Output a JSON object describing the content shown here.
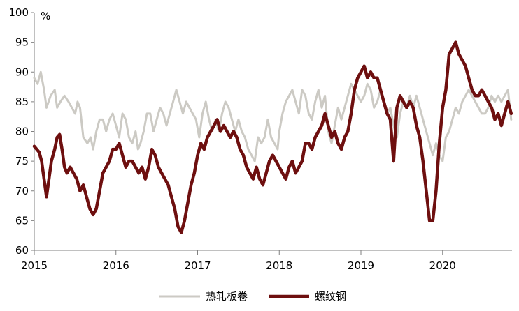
{
  "chart_data": {
    "type": "line",
    "ylabel": "%",
    "ylim": [
      60,
      100
    ],
    "yticks": [
      60,
      65,
      70,
      75,
      80,
      85,
      90,
      95,
      100
    ],
    "xlim": [
      2015,
      2020.85
    ],
    "xticks": [
      2015,
      2016,
      2017,
      2018,
      2019,
      2020
    ],
    "x_tick_labels": [
      "2015",
      "2016",
      "2017",
      "2018",
      "2019",
      "2020"
    ],
    "grid": false,
    "legend_position": "bottom",
    "series": [
      {
        "name": "热轧板卷",
        "color": "#cccac4",
        "points": [
          [
            2015.0,
            89
          ],
          [
            2015.04,
            88
          ],
          [
            2015.08,
            90
          ],
          [
            2015.12,
            87
          ],
          [
            2015.15,
            84
          ],
          [
            2015.2,
            86
          ],
          [
            2015.25,
            87
          ],
          [
            2015.28,
            84
          ],
          [
            2015.32,
            85
          ],
          [
            2015.37,
            86
          ],
          [
            2015.42,
            85
          ],
          [
            2015.46,
            84
          ],
          [
            2015.5,
            83
          ],
          [
            2015.53,
            85
          ],
          [
            2015.56,
            84
          ],
          [
            2015.6,
            79
          ],
          [
            2015.65,
            78
          ],
          [
            2015.69,
            79
          ],
          [
            2015.72,
            77
          ],
          [
            2015.76,
            80
          ],
          [
            2015.8,
            82
          ],
          [
            2015.84,
            82
          ],
          [
            2015.88,
            80
          ],
          [
            2015.92,
            82
          ],
          [
            2015.96,
            83
          ],
          [
            2016.0,
            81
          ],
          [
            2016.04,
            79
          ],
          [
            2016.08,
            83
          ],
          [
            2016.12,
            82
          ],
          [
            2016.16,
            79
          ],
          [
            2016.2,
            78
          ],
          [
            2016.24,
            80
          ],
          [
            2016.27,
            77
          ],
          [
            2016.3,
            78
          ],
          [
            2016.34,
            80
          ],
          [
            2016.38,
            83
          ],
          [
            2016.42,
            83
          ],
          [
            2016.46,
            80
          ],
          [
            2016.5,
            82
          ],
          [
            2016.54,
            84
          ],
          [
            2016.58,
            83
          ],
          [
            2016.62,
            81
          ],
          [
            2016.66,
            83
          ],
          [
            2016.7,
            85
          ],
          [
            2016.74,
            87
          ],
          [
            2016.78,
            85
          ],
          [
            2016.82,
            83
          ],
          [
            2016.86,
            85
          ],
          [
            2016.9,
            84
          ],
          [
            2016.94,
            83
          ],
          [
            2016.98,
            82
          ],
          [
            2017.02,
            79
          ],
          [
            2017.06,
            83
          ],
          [
            2017.1,
            85
          ],
          [
            2017.14,
            82
          ],
          [
            2017.18,
            80
          ],
          [
            2017.22,
            82
          ],
          [
            2017.26,
            80
          ],
          [
            2017.3,
            83
          ],
          [
            2017.34,
            85
          ],
          [
            2017.38,
            84
          ],
          [
            2017.42,
            82
          ],
          [
            2017.46,
            80
          ],
          [
            2017.5,
            82
          ],
          [
            2017.54,
            80
          ],
          [
            2017.58,
            79
          ],
          [
            2017.62,
            77
          ],
          [
            2017.66,
            76
          ],
          [
            2017.7,
            75
          ],
          [
            2017.74,
            79
          ],
          [
            2017.78,
            78
          ],
          [
            2017.82,
            79
          ],
          [
            2017.86,
            82
          ],
          [
            2017.9,
            79
          ],
          [
            2017.94,
            78
          ],
          [
            2017.98,
            77
          ],
          [
            2018.0,
            80
          ],
          [
            2018.04,
            83
          ],
          [
            2018.08,
            85
          ],
          [
            2018.12,
            86
          ],
          [
            2018.16,
            87
          ],
          [
            2018.2,
            85
          ],
          [
            2018.24,
            83
          ],
          [
            2018.28,
            87
          ],
          [
            2018.32,
            86
          ],
          [
            2018.36,
            83
          ],
          [
            2018.4,
            82
          ],
          [
            2018.44,
            85
          ],
          [
            2018.48,
            87
          ],
          [
            2018.52,
            84
          ],
          [
            2018.56,
            86
          ],
          [
            2018.6,
            80
          ],
          [
            2018.64,
            78
          ],
          [
            2018.68,
            81
          ],
          [
            2018.72,
            84
          ],
          [
            2018.76,
            82
          ],
          [
            2018.8,
            84
          ],
          [
            2018.84,
            86
          ],
          [
            2018.88,
            88
          ],
          [
            2018.92,
            87
          ],
          [
            2018.96,
            86
          ],
          [
            2019.0,
            85
          ],
          [
            2019.04,
            86
          ],
          [
            2019.08,
            88
          ],
          [
            2019.12,
            87
          ],
          [
            2019.16,
            84
          ],
          [
            2019.2,
            85
          ],
          [
            2019.24,
            87
          ],
          [
            2019.28,
            85
          ],
          [
            2019.32,
            83
          ],
          [
            2019.36,
            84
          ],
          [
            2019.4,
            81
          ],
          [
            2019.44,
            79
          ],
          [
            2019.48,
            83
          ],
          [
            2019.52,
            85
          ],
          [
            2019.56,
            84
          ],
          [
            2019.6,
            86
          ],
          [
            2019.64,
            84
          ],
          [
            2019.68,
            86
          ],
          [
            2019.72,
            84
          ],
          [
            2019.76,
            82
          ],
          [
            2019.8,
            80
          ],
          [
            2019.84,
            78
          ],
          [
            2019.88,
            76
          ],
          [
            2019.92,
            78
          ],
          [
            2019.96,
            76
          ],
          [
            2020.0,
            75
          ],
          [
            2020.04,
            79
          ],
          [
            2020.08,
            80
          ],
          [
            2020.12,
            82
          ],
          [
            2020.16,
            84
          ],
          [
            2020.2,
            83
          ],
          [
            2020.24,
            85
          ],
          [
            2020.28,
            86
          ],
          [
            2020.32,
            87
          ],
          [
            2020.36,
            86
          ],
          [
            2020.4,
            85
          ],
          [
            2020.44,
            84
          ],
          [
            2020.48,
            83
          ],
          [
            2020.52,
            83
          ],
          [
            2020.56,
            84
          ],
          [
            2020.6,
            86
          ],
          [
            2020.64,
            85
          ],
          [
            2020.68,
            86
          ],
          [
            2020.72,
            85
          ],
          [
            2020.76,
            86
          ],
          [
            2020.8,
            87
          ],
          [
            2020.84,
            82
          ]
        ]
      },
      {
        "name": "螺纹钢",
        "color": "#6e0f0f",
        "points": [
          [
            2015.0,
            77.5
          ],
          [
            2015.03,
            77
          ],
          [
            2015.06,
            76.5
          ],
          [
            2015.09,
            75
          ],
          [
            2015.12,
            72
          ],
          [
            2015.15,
            69
          ],
          [
            2015.18,
            72
          ],
          [
            2015.21,
            75
          ],
          [
            2015.25,
            77
          ],
          [
            2015.28,
            79
          ],
          [
            2015.31,
            79.5
          ],
          [
            2015.34,
            77
          ],
          [
            2015.37,
            74
          ],
          [
            2015.4,
            73
          ],
          [
            2015.44,
            74
          ],
          [
            2015.48,
            73
          ],
          [
            2015.52,
            72
          ],
          [
            2015.56,
            70
          ],
          [
            2015.6,
            71
          ],
          [
            2015.64,
            69
          ],
          [
            2015.68,
            67
          ],
          [
            2015.72,
            66
          ],
          [
            2015.76,
            67
          ],
          [
            2015.8,
            70
          ],
          [
            2015.84,
            73
          ],
          [
            2015.88,
            74
          ],
          [
            2015.92,
            75
          ],
          [
            2015.96,
            77
          ],
          [
            2016.0,
            77
          ],
          [
            2016.04,
            78
          ],
          [
            2016.08,
            76
          ],
          [
            2016.12,
            74
          ],
          [
            2016.16,
            75
          ],
          [
            2016.2,
            75
          ],
          [
            2016.24,
            74
          ],
          [
            2016.28,
            73
          ],
          [
            2016.32,
            74
          ],
          [
            2016.36,
            72
          ],
          [
            2016.4,
            74
          ],
          [
            2016.44,
            77
          ],
          [
            2016.48,
            76
          ],
          [
            2016.52,
            74
          ],
          [
            2016.56,
            73
          ],
          [
            2016.6,
            72
          ],
          [
            2016.64,
            71
          ],
          [
            2016.68,
            69
          ],
          [
            2016.72,
            67
          ],
          [
            2016.76,
            64
          ],
          [
            2016.8,
            63
          ],
          [
            2016.84,
            65
          ],
          [
            2016.88,
            68
          ],
          [
            2016.92,
            71
          ],
          [
            2016.96,
            73
          ],
          [
            2017.0,
            76
          ],
          [
            2017.04,
            78
          ],
          [
            2017.08,
            77
          ],
          [
            2017.12,
            79
          ],
          [
            2017.16,
            80
          ],
          [
            2017.2,
            81
          ],
          [
            2017.24,
            82
          ],
          [
            2017.28,
            80
          ],
          [
            2017.32,
            81
          ],
          [
            2017.36,
            80
          ],
          [
            2017.4,
            79
          ],
          [
            2017.44,
            80
          ],
          [
            2017.48,
            79
          ],
          [
            2017.52,
            77
          ],
          [
            2017.56,
            76
          ],
          [
            2017.6,
            74
          ],
          [
            2017.64,
            73
          ],
          [
            2017.68,
            72
          ],
          [
            2017.72,
            74
          ],
          [
            2017.76,
            72
          ],
          [
            2017.8,
            71
          ],
          [
            2017.84,
            73
          ],
          [
            2017.88,
            75
          ],
          [
            2017.92,
            76
          ],
          [
            2017.96,
            75
          ],
          [
            2018.0,
            74
          ],
          [
            2018.04,
            73
          ],
          [
            2018.08,
            72
          ],
          [
            2018.12,
            74
          ],
          [
            2018.16,
            75
          ],
          [
            2018.2,
            73
          ],
          [
            2018.24,
            74
          ],
          [
            2018.28,
            75
          ],
          [
            2018.32,
            78
          ],
          [
            2018.36,
            78
          ],
          [
            2018.4,
            77
          ],
          [
            2018.44,
            79
          ],
          [
            2018.48,
            80
          ],
          [
            2018.52,
            81
          ],
          [
            2018.56,
            83
          ],
          [
            2018.6,
            81
          ],
          [
            2018.64,
            79
          ],
          [
            2018.68,
            80
          ],
          [
            2018.72,
            78
          ],
          [
            2018.76,
            77
          ],
          [
            2018.8,
            79
          ],
          [
            2018.84,
            80
          ],
          [
            2018.88,
            83
          ],
          [
            2018.92,
            87
          ],
          [
            2018.96,
            89
          ],
          [
            2019.0,
            90
          ],
          [
            2019.04,
            91
          ],
          [
            2019.08,
            89
          ],
          [
            2019.12,
            90
          ],
          [
            2019.16,
            89
          ],
          [
            2019.2,
            89
          ],
          [
            2019.24,
            87
          ],
          [
            2019.28,
            85
          ],
          [
            2019.32,
            83
          ],
          [
            2019.36,
            82
          ],
          [
            2019.4,
            75
          ],
          [
            2019.44,
            84
          ],
          [
            2019.48,
            86
          ],
          [
            2019.52,
            85
          ],
          [
            2019.56,
            84
          ],
          [
            2019.6,
            85
          ],
          [
            2019.64,
            84
          ],
          [
            2019.68,
            81
          ],
          [
            2019.72,
            79
          ],
          [
            2019.76,
            75
          ],
          [
            2019.8,
            70
          ],
          [
            2019.84,
            65
          ],
          [
            2019.88,
            65
          ],
          [
            2019.92,
            70
          ],
          [
            2019.96,
            78
          ],
          [
            2020.0,
            84
          ],
          [
            2020.04,
            87
          ],
          [
            2020.08,
            93
          ],
          [
            2020.12,
            94
          ],
          [
            2020.16,
            95
          ],
          [
            2020.2,
            93
          ],
          [
            2020.24,
            92
          ],
          [
            2020.28,
            91
          ],
          [
            2020.32,
            89
          ],
          [
            2020.36,
            87
          ],
          [
            2020.4,
            86
          ],
          [
            2020.44,
            86
          ],
          [
            2020.48,
            87
          ],
          [
            2020.52,
            86
          ],
          [
            2020.56,
            85
          ],
          [
            2020.6,
            84
          ],
          [
            2020.64,
            82
          ],
          [
            2020.68,
            83
          ],
          [
            2020.72,
            81
          ],
          [
            2020.76,
            83
          ],
          [
            2020.8,
            85
          ],
          [
            2020.84,
            83
          ]
        ]
      }
    ]
  }
}
